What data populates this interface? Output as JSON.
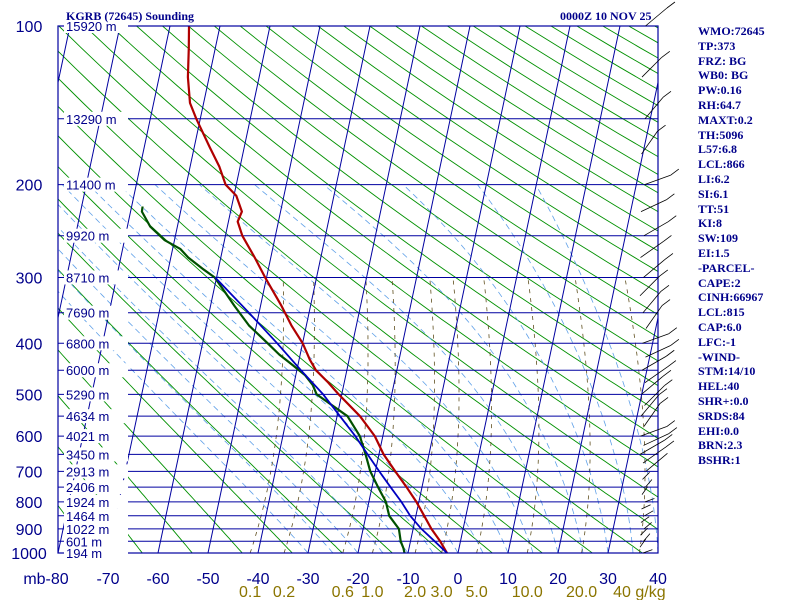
{
  "header": {
    "station": "KGRB (72645) Sounding",
    "time": "0000Z 10 NOV 25"
  },
  "indices": [
    "WMO:72645",
    "TP:373",
    "FRZ: BG",
    "WB0: BG",
    "PW:0.16",
    "RH:64.7",
    "MAXT:0.2",
    "TH:5096",
    "L57:6.8",
    "LCL:866",
    "LI:6.2",
    "SI:6.1",
    "TT:51",
    "KI:8",
    "SW:109",
    "EI:1.5",
    "-PARCEL-",
    "CAPE:2",
    "CINH:66967",
    "LCL:815",
    "CAP:6.0",
    "LFC:-1",
    "-WIND-",
    "STM:14/10",
    "HEL:40",
    "SHR+:0.0",
    "SRDS:84",
    "EHI:0.0",
    "BRN:2.3",
    "BSHR:1"
  ],
  "colors": {
    "grid": "#0000a0",
    "dry_adiabat": "#009000",
    "moist_adiabat": "#5fa0e8",
    "mixing_ratio": "#605020",
    "temperature": "#b00000",
    "dewpoint": "#005000",
    "parcel": "#0000c0",
    "mixing_label": "#8b7500",
    "text": "#00008b"
  },
  "chart_data": {
    "type": "line",
    "chart_kind": "skew-T log-P sounding",
    "y_scale": "log",
    "pressure_levels_mb": [
      100,
      200,
      300,
      400,
      500,
      600,
      700,
      800,
      900,
      1000
    ],
    "x_ticks_c": [
      -80,
      -70,
      -60,
      -50,
      -40,
      -30,
      -20,
      -10,
      0,
      10,
      20,
      30,
      40
    ],
    "x_tick_labels": [
      "mb-80",
      "-70",
      "-60",
      "-50",
      "-40",
      "-30",
      "-20",
      "-10",
      "0",
      "10",
      "20",
      "30",
      "40"
    ],
    "mixing_ratio_labels": [
      "0.1",
      "0.2",
      "0.6",
      "1.0",
      "2.0",
      "3.0",
      "5.0",
      "10.0",
      "20.0",
      "40 g/kg"
    ],
    "mixing_ratio_values": [
      0.1,
      0.2,
      0.6,
      1.0,
      2.0,
      3.0,
      5.0,
      10.0,
      20.0,
      40.0
    ],
    "height_labels": [
      {
        "p": 1000,
        "label": "194 m"
      },
      {
        "p": 950,
        "label": "601 m"
      },
      {
        "p": 900,
        "label": "1022 m"
      },
      {
        "p": 850,
        "label": "1464 m"
      },
      {
        "p": 800,
        "label": "1924 m"
      },
      {
        "p": 750,
        "label": "2406 m"
      },
      {
        "p": 700,
        "label": "2913 m"
      },
      {
        "p": 650,
        "label": "3450 m"
      },
      {
        "p": 600,
        "label": "4021 m"
      },
      {
        "p": 550,
        "label": "4634 m"
      },
      {
        "p": 500,
        "label": "5290 m"
      },
      {
        "p": 450,
        "label": "6000 m"
      },
      {
        "p": 400,
        "label": "6800 m"
      },
      {
        "p": 350,
        "label": "7690 m"
      },
      {
        "p": 300,
        "label": "8710 m"
      },
      {
        "p": 250,
        "label": "9920 m"
      },
      {
        "p": 200,
        "label": "11400 m"
      },
      {
        "p": 150,
        "label": "13290 m"
      },
      {
        "p": 100,
        "label": "15920 m"
      }
    ],
    "series": [
      {
        "key": "temperature",
        "points": [
          [
            1000,
            -2.2
          ],
          [
            950,
            -4.8
          ],
          [
            900,
            -7.8
          ],
          [
            850,
            -10.5
          ],
          [
            800,
            -13.3
          ],
          [
            750,
            -16.5
          ],
          [
            700,
            -20
          ],
          [
            650,
            -23.6
          ],
          [
            600,
            -26.6
          ],
          [
            550,
            -30.8
          ],
          [
            500,
            -36.3
          ],
          [
            475,
            -39
          ],
          [
            450,
            -42.1
          ],
          [
            430,
            -43.8
          ],
          [
            400,
            -46
          ],
          [
            370,
            -49
          ],
          [
            340,
            -51.7
          ],
          [
            320,
            -53.8
          ],
          [
            300,
            -56
          ],
          [
            275,
            -58.7
          ],
          [
            250,
            -61.8
          ],
          [
            235,
            -63.1
          ],
          [
            225,
            -62.5
          ],
          [
            210,
            -64
          ],
          [
            200,
            -66.4
          ],
          [
            185,
            -68
          ],
          [
            170,
            -70.3
          ],
          [
            150,
            -73.5
          ],
          [
            140,
            -75
          ],
          [
            125,
            -75.8
          ],
          [
            110,
            -76
          ],
          [
            100,
            -76.2
          ]
        ]
      },
      {
        "key": "dewpoint",
        "points": [
          [
            1000,
            -10.7
          ],
          [
            980,
            -11.4
          ],
          [
            950,
            -12.7
          ],
          [
            900,
            -14.3
          ],
          [
            850,
            -17.5
          ],
          [
            800,
            -19.4
          ],
          [
            750,
            -22.2
          ],
          [
            700,
            -25
          ],
          [
            650,
            -27.2
          ],
          [
            600,
            -29.6
          ],
          [
            550,
            -33.3
          ],
          [
            500,
            -40.7
          ],
          [
            480,
            -42
          ],
          [
            460,
            -44
          ],
          [
            440,
            -47
          ],
          [
            420,
            -50.2
          ],
          [
            400,
            -53
          ],
          [
            370,
            -57.5
          ],
          [
            340,
            -61.1
          ],
          [
            320,
            -63.5
          ],
          [
            300,
            -66.1
          ],
          [
            290,
            -68.5
          ],
          [
            275,
            -72
          ],
          [
            265,
            -73.8
          ],
          [
            255,
            -77.2
          ],
          [
            240,
            -80.5
          ],
          [
            225,
            -82.5
          ],
          [
            220,
            -82.5
          ]
        ]
      },
      {
        "key": "parcel",
        "points": [
          [
            1000,
            -2.2
          ],
          [
            950,
            -5.9
          ],
          [
            900,
            -9.8
          ],
          [
            850,
            -13.3
          ],
          [
            800,
            -16.3
          ],
          [
            750,
            -19.7
          ],
          [
            700,
            -23.2
          ],
          [
            650,
            -26.8
          ],
          [
            600,
            -30.5
          ],
          [
            550,
            -34.8
          ],
          [
            500,
            -39.4
          ],
          [
            450,
            -45.1
          ],
          [
            400,
            -51.1
          ],
          [
            350,
            -58
          ],
          [
            300,
            -66
          ]
        ]
      }
    ],
    "wind_barbs_side": "right"
  }
}
